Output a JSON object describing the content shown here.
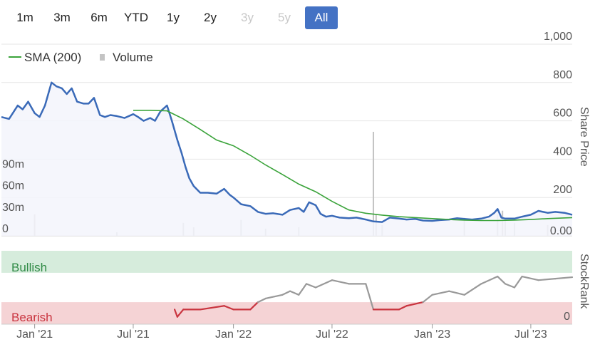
{
  "range_selector": {
    "buttons": [
      {
        "label": "1m",
        "state": "enabled"
      },
      {
        "label": "3m",
        "state": "enabled"
      },
      {
        "label": "6m",
        "state": "enabled"
      },
      {
        "label": "YTD",
        "state": "enabled"
      },
      {
        "label": "1y",
        "state": "enabled"
      },
      {
        "label": "2y",
        "state": "enabled"
      },
      {
        "label": "3y",
        "state": "disabled"
      },
      {
        "label": "5y",
        "state": "disabled"
      },
      {
        "label": "All",
        "state": "active"
      }
    ]
  },
  "legend": {
    "sma_label": "SMA (200)",
    "volume_label": "Volume"
  },
  "colors": {
    "price": "#3a6ab8",
    "price_fill": "#f3f5fb",
    "sma": "#3aa33a",
    "volume": "#c4c4c4",
    "bullish": "#d6ecdc",
    "bearish": "#f5d3d5",
    "rank_bull": "#999999",
    "rank_bear": "#c9343f",
    "active_button": "#4472c4"
  },
  "labels": {
    "price_axis_title": "Share Price",
    "rank_axis_title": "StockRank",
    "bullish": "Bullish",
    "bearish": "Bearish",
    "rank_zero": "0",
    "price_axis_bottom": "0.00"
  },
  "chart_data": [
    {
      "type": "line",
      "x_ticks": [
        "Jan '21",
        "Jul '21",
        "Jan '22",
        "Jul '22",
        "Jan '23",
        "Jul '23"
      ],
      "x_tick_dates": [
        "2021-01-01",
        "2021-07-01",
        "2022-01-01",
        "2022-07-01",
        "2023-01-01",
        "2023-07-01"
      ],
      "x_range": [
        "2020-11-01",
        "2023-09-15"
      ],
      "y_ticks": [
        1000,
        800,
        600,
        400,
        200
      ],
      "y_tick_labels": [
        "1,000",
        "800",
        "600",
        "400",
        "200"
      ],
      "y_bottom_label": "0.00",
      "ylim": [
        0,
        1000
      ],
      "volume_ticks": [
        0,
        30,
        60,
        90
      ],
      "volume_tick_labels": [
        "0",
        "30m",
        "60m",
        "90m"
      ],
      "volume_ylim": [
        0,
        145
      ],
      "series": [
        {
          "name": "Price",
          "points": [
            [
              "2020-11-01",
              620
            ],
            [
              "2020-11-15",
              610
            ],
            [
              "2020-12-01",
              680
            ],
            [
              "2020-12-10",
              660
            ],
            [
              "2020-12-20",
              700
            ],
            [
              "2021-01-01",
              640
            ],
            [
              "2021-01-10",
              620
            ],
            [
              "2021-01-20",
              680
            ],
            [
              "2021-02-01",
              800
            ],
            [
              "2021-02-10",
              780
            ],
            [
              "2021-02-20",
              770
            ],
            [
              "2021-03-01",
              740
            ],
            [
              "2021-03-10",
              770
            ],
            [
              "2021-03-20",
              700
            ],
            [
              "2021-04-01",
              690
            ],
            [
              "2021-04-10",
              690
            ],
            [
              "2021-04-20",
              720
            ],
            [
              "2021-05-01",
              630
            ],
            [
              "2021-05-10",
              620
            ],
            [
              "2021-05-20",
              630
            ],
            [
              "2021-06-01",
              625
            ],
            [
              "2021-06-15",
              615
            ],
            [
              "2021-07-01",
              635
            ],
            [
              "2021-07-10",
              620
            ],
            [
              "2021-07-20",
              600
            ],
            [
              "2021-08-01",
              615
            ],
            [
              "2021-08-10",
              600
            ],
            [
              "2021-08-20",
              650
            ],
            [
              "2021-09-01",
              680
            ],
            [
              "2021-09-10",
              600
            ],
            [
              "2021-09-20",
              500
            ],
            [
              "2021-09-28",
              430
            ],
            [
              "2021-10-05",
              360
            ],
            [
              "2021-10-12",
              300
            ],
            [
              "2021-10-20",
              260
            ],
            [
              "2021-11-01",
              225
            ],
            [
              "2021-11-15",
              225
            ],
            [
              "2021-12-01",
              220
            ],
            [
              "2021-12-15",
              245
            ],
            [
              "2021-12-25",
              215
            ],
            [
              "2022-01-01",
              200
            ],
            [
              "2022-01-15",
              165
            ],
            [
              "2022-02-01",
              155
            ],
            [
              "2022-02-15",
              125
            ],
            [
              "2022-03-01",
              115
            ],
            [
              "2022-03-15",
              118
            ],
            [
              "2022-04-01",
              110
            ],
            [
              "2022-04-15",
              135
            ],
            [
              "2022-05-01",
              145
            ],
            [
              "2022-05-10",
              125
            ],
            [
              "2022-05-20",
              175
            ],
            [
              "2022-06-01",
              160
            ],
            [
              "2022-06-10",
              115
            ],
            [
              "2022-06-20",
              100
            ],
            [
              "2022-07-01",
              105
            ],
            [
              "2022-07-15",
              95
            ],
            [
              "2022-08-01",
              92
            ],
            [
              "2022-08-15",
              95
            ],
            [
              "2022-09-01",
              85
            ],
            [
              "2022-09-15",
              75
            ],
            [
              "2022-10-01",
              72
            ],
            [
              "2022-10-15",
              95
            ],
            [
              "2022-11-01",
              90
            ],
            [
              "2022-11-15",
              85
            ],
            [
              "2022-12-01",
              88
            ],
            [
              "2022-12-15",
              80
            ],
            [
              "2023-01-01",
              78
            ],
            [
              "2023-01-15",
              82
            ],
            [
              "2023-02-01",
              85
            ],
            [
              "2023-02-15",
              92
            ],
            [
              "2023-03-01",
              88
            ],
            [
              "2023-03-15",
              85
            ],
            [
              "2023-04-01",
              90
            ],
            [
              "2023-04-15",
              100
            ],
            [
              "2023-04-25",
              120
            ],
            [
              "2023-05-01",
              140
            ],
            [
              "2023-05-08",
              95
            ],
            [
              "2023-05-15",
              90
            ],
            [
              "2023-06-01",
              90
            ],
            [
              "2023-06-15",
              100
            ],
            [
              "2023-07-01",
              110
            ],
            [
              "2023-07-15",
              130
            ],
            [
              "2023-08-01",
              120
            ],
            [
              "2023-08-15",
              125
            ],
            [
              "2023-09-01",
              120
            ],
            [
              "2023-09-15",
              110
            ]
          ]
        },
        {
          "name": "SMA (200)",
          "points": [
            [
              "2021-07-01",
              655
            ],
            [
              "2021-08-01",
              655
            ],
            [
              "2021-09-01",
              652
            ],
            [
              "2021-10-01",
              610
            ],
            [
              "2021-11-01",
              555
            ],
            [
              "2021-12-01",
              500
            ],
            [
              "2022-01-01",
              470
            ],
            [
              "2022-02-01",
              420
            ],
            [
              "2022-03-01",
              370
            ],
            [
              "2022-04-01",
              320
            ],
            [
              "2022-05-01",
              270
            ],
            [
              "2022-06-01",
              230
            ],
            [
              "2022-07-01",
              180
            ],
            [
              "2022-08-01",
              135
            ],
            [
              "2022-09-01",
              118
            ],
            [
              "2022-10-01",
              108
            ],
            [
              "2022-11-01",
              100
            ],
            [
              "2022-12-01",
              95
            ],
            [
              "2023-01-01",
              90
            ],
            [
              "2023-02-01",
              85
            ],
            [
              "2023-03-01",
              82
            ],
            [
              "2023-04-01",
              80
            ],
            [
              "2023-05-01",
              80
            ],
            [
              "2023-06-01",
              82
            ],
            [
              "2023-07-01",
              85
            ],
            [
              "2023-08-01",
              90
            ],
            [
              "2023-09-15",
              95
            ]
          ]
        },
        {
          "name": "Volume",
          "type": "bar",
          "points": [
            [
              "2021-01-01",
              30
            ],
            [
              "2021-06-01",
              5
            ],
            [
              "2021-10-01",
              18
            ],
            [
              "2021-10-20",
              12
            ],
            [
              "2022-01-15",
              22
            ],
            [
              "2022-03-01",
              10
            ],
            [
              "2022-05-01",
              12
            ],
            [
              "2022-09-15",
              145
            ],
            [
              "2022-09-20",
              30
            ],
            [
              "2022-10-01",
              15
            ],
            [
              "2023-03-01",
              25
            ],
            [
              "2023-05-01",
              30
            ],
            [
              "2023-05-10",
              35
            ],
            [
              "2023-05-15",
              25
            ],
            [
              "2023-06-01",
              18
            ],
            [
              "2023-08-01",
              15
            ]
          ]
        }
      ]
    },
    {
      "type": "line",
      "name": "StockRank",
      "ylim": [
        0,
        100
      ],
      "bands": {
        "bullish_from": 70,
        "bearish_to": 30
      },
      "series": [
        {
          "name": "StockRank",
          "points": [
            [
              "2021-09-15",
              20
            ],
            [
              "2021-09-20",
              10
            ],
            [
              "2021-10-01",
              20
            ],
            [
              "2021-11-01",
              20
            ],
            [
              "2021-12-15",
              25
            ],
            [
              "2022-01-01",
              20
            ],
            [
              "2022-02-01",
              20
            ],
            [
              "2022-02-15",
              30
            ],
            [
              "2022-03-01",
              35
            ],
            [
              "2022-04-01",
              40
            ],
            [
              "2022-04-15",
              45
            ],
            [
              "2022-05-01",
              40
            ],
            [
              "2022-05-15",
              55
            ],
            [
              "2022-06-01",
              50
            ],
            [
              "2022-07-01",
              60
            ],
            [
              "2022-08-01",
              55
            ],
            [
              "2022-09-01",
              55
            ],
            [
              "2022-09-15",
              20
            ],
            [
              "2022-11-01",
              20
            ],
            [
              "2022-11-15",
              25
            ],
            [
              "2022-12-15",
              30
            ],
            [
              "2023-01-01",
              40
            ],
            [
              "2023-02-01",
              45
            ],
            [
              "2023-03-01",
              40
            ],
            [
              "2023-04-01",
              55
            ],
            [
              "2023-05-01",
              65
            ],
            [
              "2023-05-15",
              55
            ],
            [
              "2023-06-01",
              50
            ],
            [
              "2023-06-15",
              65
            ],
            [
              "2023-07-15",
              60
            ],
            [
              "2023-08-15",
              62
            ],
            [
              "2023-09-15",
              64
            ]
          ]
        }
      ]
    }
  ]
}
